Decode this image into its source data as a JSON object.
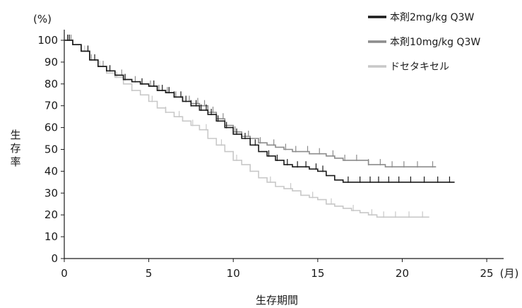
{
  "chart_data": {
    "type": "line",
    "subtype": "kaplan-meier-step",
    "xlabel": "生存期間",
    "x_unit": "(月)",
    "ylabel": "生存率",
    "y_unit": "(%)",
    "xlim": [
      0,
      26
    ],
    "ylim": [
      0,
      100
    ],
    "x_ticks": [
      0,
      5,
      10,
      15,
      20,
      25
    ],
    "y_ticks": [
      0,
      10,
      20,
      30,
      40,
      50,
      60,
      70,
      80,
      90,
      100
    ],
    "grid": false,
    "legend_position": "top-right",
    "series": [
      {
        "name": "本剤2mg/kg Q3W",
        "color": "#1a1a1a",
        "x": [
          0,
          0.5,
          1,
          1.5,
          2,
          2.5,
          3,
          3.5,
          4,
          4.5,
          5,
          5.5,
          6,
          6.5,
          7,
          7.5,
          8,
          8.5,
          9,
          9.5,
          10,
          10.5,
          11,
          11.5,
          12,
          12.5,
          13,
          13.5,
          14,
          14.5,
          15,
          15.5,
          16,
          16.5,
          17,
          18,
          19,
          20,
          21,
          22,
          23.1
        ],
        "y": [
          100,
          98,
          95,
          91,
          88,
          86,
          84,
          82,
          81,
          80,
          79,
          77,
          76,
          74,
          72,
          70,
          68,
          66,
          63,
          60,
          57,
          55,
          52,
          49,
          47,
          45,
          43,
          42,
          42,
          41,
          40,
          38,
          36,
          35,
          35,
          35,
          35,
          35,
          35,
          35,
          35
        ],
        "censor_x": [
          0.2,
          0.3,
          1.4,
          1.8,
          2.7,
          3.6,
          4.6,
          5.3,
          5.8,
          6.2,
          6.5,
          6.9,
          7.2,
          7.5,
          7.8,
          8.1,
          8.4,
          8.7,
          9.1,
          9.6,
          10.2,
          10.7,
          11.3,
          12.1,
          12.6,
          13.2,
          13.8,
          14.3,
          14.9,
          15.3,
          16.8,
          17.5,
          18.1,
          18.6,
          19.2,
          19.8,
          20.5,
          21.3,
          22.1,
          22.8
        ]
      },
      {
        "name": "本剤10mg/kg Q3W",
        "color": "#8c8c8c",
        "x": [
          0,
          0.5,
          1,
          1.5,
          2,
          2.5,
          3,
          3.5,
          4,
          4.5,
          5,
          5.5,
          6,
          6.5,
          7,
          7.5,
          8,
          8.5,
          9,
          9.5,
          10,
          10.5,
          11,
          11.5,
          12,
          12.5,
          13,
          13.5,
          14,
          14.5,
          15,
          15.5,
          16,
          16.5,
          17,
          18,
          19,
          20,
          21,
          22
        ],
        "y": [
          100,
          98,
          95,
          91,
          88,
          86,
          84,
          82,
          81,
          80,
          79,
          77,
          76,
          74,
          72,
          71,
          70,
          67,
          64,
          61,
          58,
          56,
          55,
          53,
          52,
          51,
          50,
          49,
          49,
          48,
          48,
          47,
          46,
          45,
          45,
          43,
          42,
          42,
          42,
          42
        ],
        "censor_x": [
          0.2,
          0.4,
          1.6,
          2.3,
          3.4,
          4.2,
          5.1,
          5.6,
          6.1,
          6.6,
          7.0,
          7.4,
          7.9,
          8.3,
          8.8,
          9.4,
          10.1,
          10.9,
          11.6,
          12.4,
          13.1,
          13.7,
          14.4,
          15.1,
          15.9,
          16.6,
          17.3,
          18.0,
          18.7,
          19.4,
          20.1,
          20.9,
          21.8
        ]
      },
      {
        "name": "ドセタキセル",
        "color": "#c8c8c8",
        "x": [
          0,
          0.5,
          1,
          1.5,
          2,
          2.5,
          3,
          3.5,
          4,
          4.5,
          5,
          5.5,
          6,
          6.5,
          7,
          7.5,
          8,
          8.5,
          9,
          9.5,
          10,
          10.5,
          11,
          11.5,
          12,
          12.5,
          13,
          13.5,
          14,
          14.5,
          15,
          15.5,
          16,
          16.5,
          17,
          17.5,
          18,
          18.5,
          19,
          20,
          21,
          21.6
        ],
        "y": [
          100,
          98,
          95,
          91,
          88,
          85,
          83,
          80,
          77,
          75,
          72,
          69,
          67,
          65,
          63,
          61,
          59,
          55,
          52,
          49,
          45,
          43,
          40,
          37,
          35,
          33,
          32,
          31,
          29,
          28,
          27,
          25,
          24,
          23,
          22,
          21,
          20,
          19,
          19,
          19,
          19,
          19
        ],
        "censor_x": [
          0.3,
          0.5,
          1.2,
          2.1,
          3.1,
          4.0,
          5.2,
          6.0,
          6.8,
          7.6,
          8.4,
          9.3,
          10.2,
          11.0,
          12.2,
          13.4,
          14.7,
          15.8,
          17.1,
          18.2,
          18.9,
          19.6,
          20.4,
          21.2
        ]
      }
    ]
  }
}
